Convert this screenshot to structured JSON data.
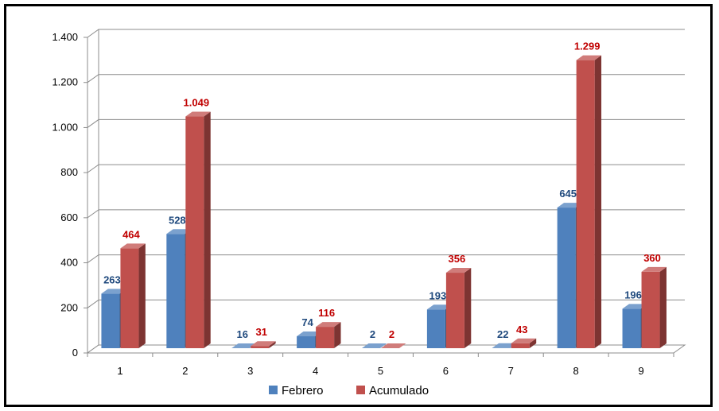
{
  "chart_data": {
    "type": "bar",
    "title": "",
    "xlabel": "",
    "ylabel": "",
    "categories": [
      "1",
      "2",
      "3",
      "4",
      "5",
      "6",
      "7",
      "8",
      "9"
    ],
    "series": [
      {
        "name": "Febrero",
        "color": "#4F81BD",
        "label_color": "#1F497D",
        "values": [
          263,
          528,
          16,
          74,
          2,
          193,
          22,
          645,
          196
        ],
        "labels": [
          "263",
          "528",
          "16",
          "74",
          "2",
          "193",
          "22",
          "645",
          "196"
        ]
      },
      {
        "name": "Acumulado",
        "color": "#C0504D",
        "label_color": "#C00000",
        "values": [
          464,
          1049,
          31,
          116,
          2,
          356,
          43,
          1299,
          360
        ],
        "labels": [
          "464",
          "1.049",
          "31",
          "116",
          "2",
          "356",
          "43",
          "1.299",
          "360"
        ]
      }
    ],
    "y_ticks": [
      0,
      200,
      400,
      600,
      800,
      1000,
      1200,
      1400
    ],
    "y_tick_labels": [
      "0",
      "200",
      "400",
      "600",
      "800",
      "1.000",
      "1.200",
      "1.400"
    ],
    "ylim": [
      0,
      1400
    ],
    "grid": true,
    "style": "3d-clustered-column",
    "legend": {
      "position": "bottom"
    }
  }
}
